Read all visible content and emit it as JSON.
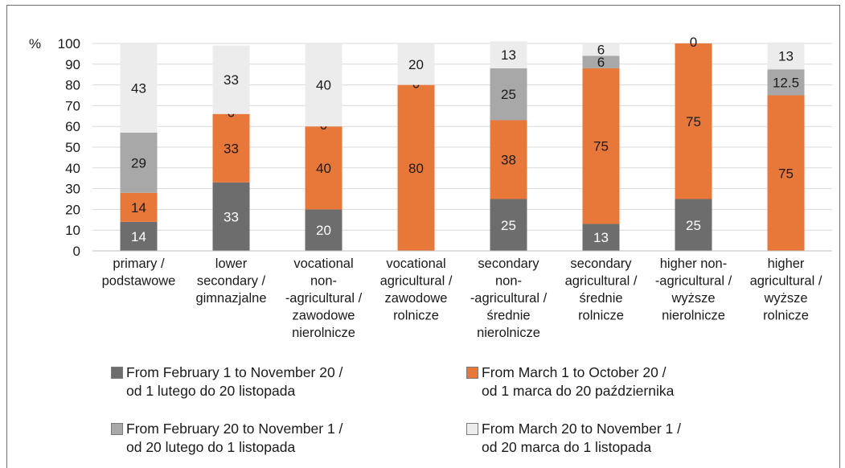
{
  "chart_data": {
    "type": "bar",
    "stacked": true,
    "ylabel": "%",
    "ylim": [
      0,
      100
    ],
    "yticks": [
      0,
      10,
      20,
      30,
      40,
      50,
      60,
      70,
      80,
      90,
      100
    ],
    "grid": true,
    "legend_position": "bottom",
    "categories": [
      [
        "primary /",
        "podstawowe"
      ],
      [
        "lower",
        "secondary /",
        "gimnazjalne"
      ],
      [
        "vocational",
        "non-",
        "-agricultural /",
        "zawodowe",
        "nierolnicze"
      ],
      [
        "vocational",
        "agricultural /",
        "zawodowe",
        "rolnicze"
      ],
      [
        "secondary",
        "non-",
        "-agricultural /",
        "średnie",
        "nierolnicze"
      ],
      [
        "secondary",
        "agricultural /",
        "średnie",
        "rolnicze"
      ],
      [
        "higher non-",
        "-agricultural /",
        "wyższe",
        "nierolnicze"
      ],
      [
        "higher",
        "agricultural /",
        "wyższe",
        "rolnicze"
      ]
    ],
    "series": [
      {
        "name": [
          "From February 1 to November 20 /",
          "od 1 lutego do 20 listopada"
        ],
        "color": "#6d6d6d",
        "label_color": "#ffffff",
        "values": [
          14,
          33,
          20,
          0,
          25,
          13,
          25,
          0
        ],
        "labels": [
          "14",
          "33",
          "20",
          "0",
          "25",
          "13",
          "25",
          "0"
        ]
      },
      {
        "name": [
          "From March 1 to October 20 /",
          "od 1 marca do 20 października"
        ],
        "color": "#e8783a",
        "label_color": "#1a1a1a",
        "values": [
          14,
          33,
          40,
          80,
          38,
          75,
          75,
          75
        ],
        "labels": [
          "14",
          "33",
          "40",
          "80",
          "38",
          "75",
          "75",
          "75"
        ]
      },
      {
        "name": [
          "From February 20 to November 1 /",
          "od 20 lutego do 1 listopada"
        ],
        "color": "#a8a8a8",
        "label_color": "#1a1a1a",
        "values": [
          29,
          0,
          0,
          0,
          25,
          6,
          0,
          12.5
        ],
        "labels": [
          "29",
          "0",
          "0",
          "0",
          "25",
          "6",
          "",
          "12.5"
        ]
      },
      {
        "name": [
          "From March 20 to November 1 /",
          "od 20 marca do 1 listopada"
        ],
        "color": "#ececec",
        "label_color": "#1a1a1a",
        "values": [
          43,
          33,
          40,
          20,
          13,
          6,
          0,
          13
        ],
        "labels": [
          "43",
          "33",
          "40",
          "20",
          "13",
          "6",
          "0",
          "13"
        ]
      }
    ]
  }
}
